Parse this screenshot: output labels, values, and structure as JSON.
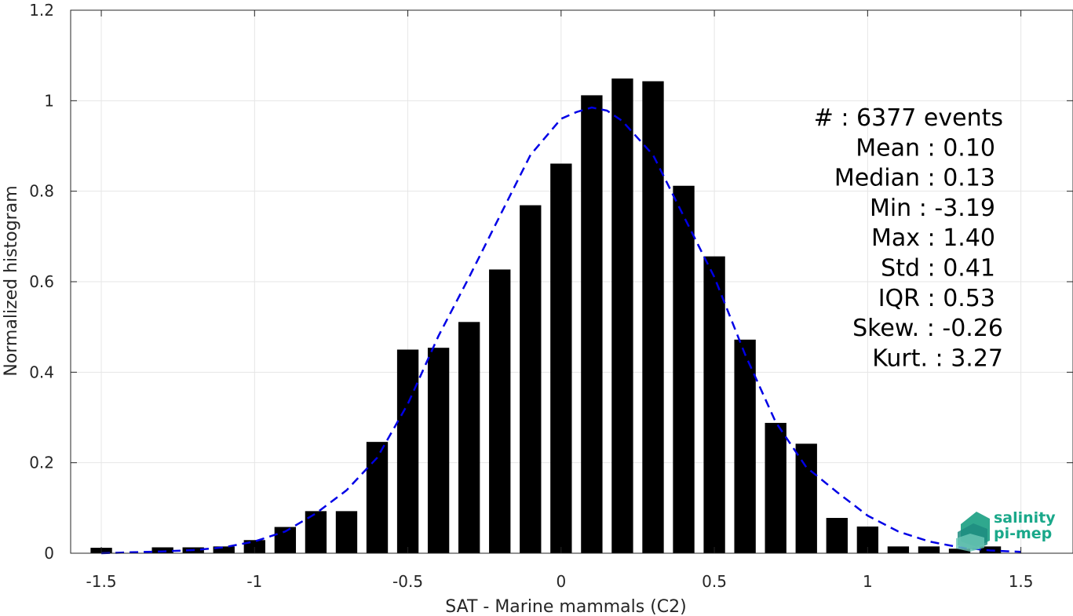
{
  "chart_data": {
    "type": "bar",
    "xlabel": "SAT - Marine mammals (C2)",
    "ylabel": "Normalized histogram",
    "xlim": [
      -1.6,
      1.67
    ],
    "ylim": [
      0,
      1.2
    ],
    "grid": true,
    "xticks": [
      -1.5,
      -1,
      -0.5,
      0,
      0.5,
      1,
      1.5
    ],
    "xtick_labels": [
      "-1.5",
      "-1",
      "-0.5",
      "0",
      "0.5",
      "1",
      "1.5"
    ],
    "yticks": [
      0,
      0.2,
      0.4,
      0.6,
      0.8,
      1,
      1.2
    ],
    "ytick_labels": [
      "0",
      "0.2",
      "0.4",
      "0.6",
      "0.8",
      "1",
      "1.2"
    ],
    "bar_color": "#000000",
    "bar_width": 0.07,
    "bars": [
      {
        "x": -1.5,
        "y": 0.012
      },
      {
        "x": -1.3,
        "y": 0.013
      },
      {
        "x": -1.2,
        "y": 0.013
      },
      {
        "x": -1.1,
        "y": 0.015
      },
      {
        "x": -1.0,
        "y": 0.029
      },
      {
        "x": -0.9,
        "y": 0.058
      },
      {
        "x": -0.8,
        "y": 0.093
      },
      {
        "x": -0.7,
        "y": 0.093
      },
      {
        "x": -0.6,
        "y": 0.246
      },
      {
        "x": -0.5,
        "y": 0.45
      },
      {
        "x": -0.4,
        "y": 0.454
      },
      {
        "x": -0.3,
        "y": 0.511
      },
      {
        "x": -0.2,
        "y": 0.627
      },
      {
        "x": -0.1,
        "y": 0.769
      },
      {
        "x": 0.0,
        "y": 0.861
      },
      {
        "x": 0.1,
        "y": 1.012
      },
      {
        "x": 0.2,
        "y": 1.049
      },
      {
        "x": 0.3,
        "y": 1.043
      },
      {
        "x": 0.4,
        "y": 0.812
      },
      {
        "x": 0.5,
        "y": 0.656
      },
      {
        "x": 0.6,
        "y": 0.472
      },
      {
        "x": 0.7,
        "y": 0.288
      },
      {
        "x": 0.8,
        "y": 0.242
      },
      {
        "x": 0.9,
        "y": 0.078
      },
      {
        "x": 1.0,
        "y": 0.059
      },
      {
        "x": 1.1,
        "y": 0.015
      },
      {
        "x": 1.2,
        "y": 0.015
      },
      {
        "x": 1.3,
        "y": 0.01
      },
      {
        "x": 1.4,
        "y": 0.015
      }
    ],
    "fit_curve": {
      "style": "dashed",
      "color": "#0000e6",
      "points": [
        [
          -1.5,
          0.0
        ],
        [
          -1.4,
          0.002
        ],
        [
          -1.3,
          0.004
        ],
        [
          -1.2,
          0.007
        ],
        [
          -1.1,
          0.013
        ],
        [
          -1.0,
          0.026
        ],
        [
          -0.9,
          0.048
        ],
        [
          -0.8,
          0.088
        ],
        [
          -0.7,
          0.139
        ],
        [
          -0.6,
          0.211
        ],
        [
          -0.5,
          0.33
        ],
        [
          -0.4,
          0.48
        ],
        [
          -0.3,
          0.61
        ],
        [
          -0.2,
          0.745
        ],
        [
          -0.1,
          0.88
        ],
        [
          0.0,
          0.96
        ],
        [
          0.05,
          0.975
        ],
        [
          0.1,
          0.985
        ],
        [
          0.15,
          0.978
        ],
        [
          0.2,
          0.955
        ],
        [
          0.3,
          0.88
        ],
        [
          0.4,
          0.745
        ],
        [
          0.5,
          0.61
        ],
        [
          0.6,
          0.44
        ],
        [
          0.7,
          0.29
        ],
        [
          0.8,
          0.19
        ],
        [
          0.9,
          0.135
        ],
        [
          1.0,
          0.083
        ],
        [
          1.1,
          0.048
        ],
        [
          1.2,
          0.026
        ],
        [
          1.3,
          0.013
        ],
        [
          1.4,
          0.006
        ],
        [
          1.5,
          0.003
        ]
      ]
    },
    "annotations": [
      "#  : 6377 events",
      "Mean : 0.10",
      "Median : 0.13",
      "Min : -3.19",
      "Max : 1.40",
      "Std : 0.41",
      "IQR : 0.53",
      "Skew. : -0.26",
      "Kurt. : 3.27"
    ]
  },
  "logo": {
    "line1": "salinity",
    "line2": "pi-mep",
    "color": "#1aa88a"
  }
}
